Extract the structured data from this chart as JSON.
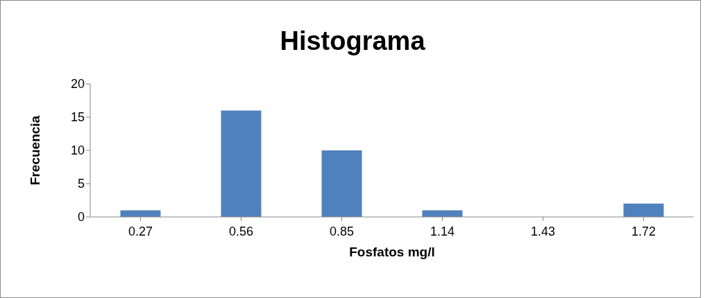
{
  "chart_data": {
    "type": "bar",
    "title": "Histograma",
    "xlabel": "Fosfatos mg/l",
    "ylabel": "Frecuencia",
    "categories": [
      "0.27",
      "0.56",
      "0.85",
      "1.14",
      "1.43",
      "1.72"
    ],
    "values": [
      1,
      16,
      10,
      1,
      0,
      2
    ],
    "color": "#4f81bd",
    "ylim": [
      0,
      20
    ],
    "yticks": [
      0,
      5,
      10,
      15,
      20
    ],
    "grid": false,
    "legend": false
  }
}
